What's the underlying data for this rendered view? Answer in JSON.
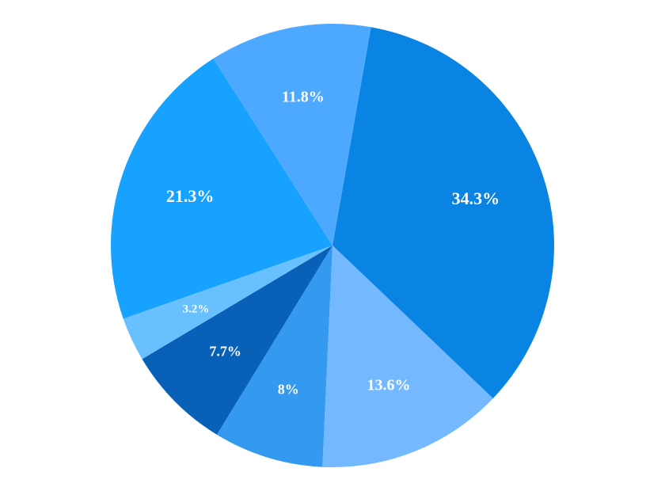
{
  "chart": {
    "type": "pie",
    "diameter": 560,
    "background_color": "#ffffff",
    "label_color": "#ffffff",
    "label_font_family": "Georgia, serif",
    "label_font_weight": "bold",
    "slices": [
      {
        "value": 34.3,
        "label": "34.3%",
        "color": "#0984e3",
        "label_fontsize": 22
      },
      {
        "value": 13.6,
        "label": "13.6%",
        "color": "#74b9ff",
        "label_fontsize": 20
      },
      {
        "value": 8.0,
        "label": "8%",
        "color": "#339af0",
        "label_fontsize": 18
      },
      {
        "value": 7.7,
        "label": "7.7%",
        "color": "#0861b6",
        "label_fontsize": 18
      },
      {
        "value": 3.2,
        "label": "3.2%",
        "color": "#69c0ff",
        "label_fontsize": 15
      },
      {
        "value": 21.3,
        "label": "21.3%",
        "color": "#17a2ff",
        "label_fontsize": 22
      },
      {
        "value": 11.8,
        "label": "11.8%",
        "color": "#4da8ff",
        "label_fontsize": 20
      }
    ],
    "start_angle_deg": -80,
    "label_radius_factor": 0.68
  }
}
